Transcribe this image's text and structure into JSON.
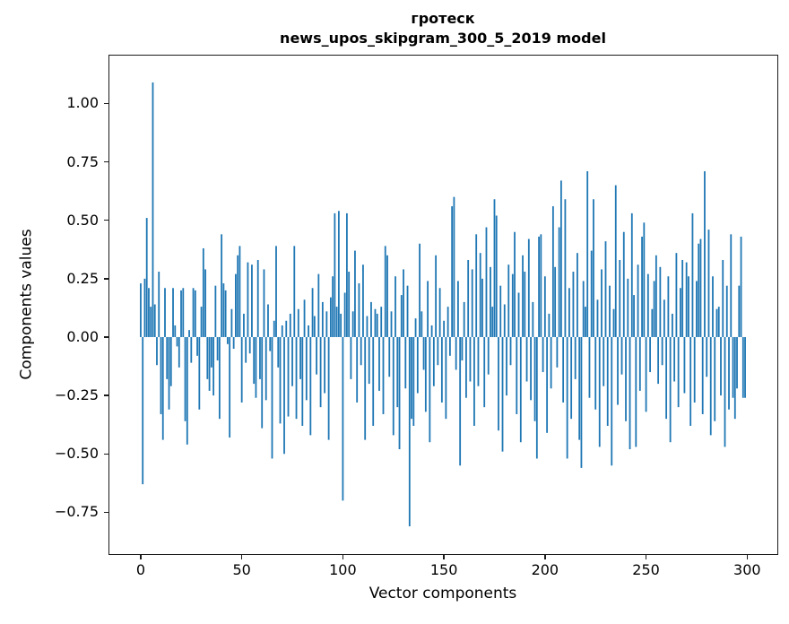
{
  "figure": {
    "title_line1": "гротеск",
    "title_line2": "news_upos_skipgram_300_5_2019 model",
    "xlabel": "Vector components",
    "ylabel": "Components values"
  },
  "chart_data": {
    "type": "bar",
    "title": "гротеск\nnews_upos_skipgram_300_5_2019 model",
    "xlabel": "Vector components",
    "ylabel": "Components values",
    "bar_color": "#1f77b4",
    "grid": false,
    "legend": null,
    "n_components": 300,
    "x_start": 0,
    "bar_width_units": 0.8,
    "xlim": [
      -15.5,
      314.5
    ],
    "ylim": [
      -0.925,
      1.205
    ],
    "x_ticks": [
      0,
      50,
      100,
      150,
      200,
      250,
      300
    ],
    "y_ticks": [
      1.0,
      0.75,
      0.5,
      0.25,
      0.0,
      -0.25,
      -0.5,
      -0.75
    ],
    "y_tick_labels": [
      "1.00",
      "0.75",
      "0.50",
      "0.25",
      "0.00",
      "−0.25",
      "−0.50",
      "−0.75"
    ],
    "values": [
      0.23,
      -0.63,
      0.25,
      0.51,
      0.21,
      0.13,
      1.09,
      0.14,
      -0.12,
      0.28,
      -0.33,
      -0.44,
      0.21,
      -0.18,
      -0.31,
      -0.21,
      0.21,
      0.05,
      -0.04,
      -0.13,
      0.2,
      0.21,
      -0.36,
      -0.46,
      0.03,
      -0.11,
      0.21,
      0.2,
      -0.08,
      -0.31,
      0.13,
      0.38,
      0.29,
      -0.18,
      -0.23,
      -0.13,
      -0.25,
      0.22,
      -0.1,
      -0.35,
      0.44,
      0.23,
      0.2,
      -0.03,
      -0.43,
      0.12,
      -0.05,
      0.27,
      0.35,
      0.39,
      -0.28,
      0.1,
      -0.11,
      0.32,
      -0.07,
      0.31,
      -0.2,
      -0.26,
      0.33,
      -0.18,
      -0.39,
      0.29,
      -0.27,
      0.14,
      -0.06,
      -0.52,
      0.07,
      0.39,
      -0.13,
      -0.37,
      0.05,
      -0.5,
      0.07,
      -0.34,
      0.1,
      -0.21,
      0.39,
      -0.35,
      0.12,
      -0.18,
      -0.38,
      0.16,
      -0.27,
      0.05,
      -0.42,
      0.21,
      0.09,
      -0.16,
      0.27,
      -0.3,
      0.15,
      -0.24,
      0.11,
      -0.44,
      0.17,
      0.26,
      0.53,
      0.13,
      0.54,
      0.1,
      -0.7,
      0.19,
      0.53,
      0.28,
      -0.18,
      0.11,
      0.37,
      -0.28,
      0.23,
      -0.12,
      0.31,
      -0.44,
      0.09,
      -0.2,
      0.15,
      -0.38,
      0.12,
      0.1,
      -0.23,
      0.13,
      -0.33,
      0.39,
      0.35,
      -0.17,
      0.11,
      -0.42,
      0.26,
      -0.3,
      -0.48,
      0.18,
      0.29,
      -0.22,
      0.22,
      -0.81,
      -0.35,
      -0.38,
      0.08,
      -0.24,
      0.4,
      0.11,
      -0.14,
      -0.32,
      0.24,
      -0.45,
      0.05,
      -0.21,
      0.35,
      -0.12,
      0.21,
      -0.28,
      0.07,
      -0.35,
      0.13,
      -0.08,
      0.56,
      0.6,
      -0.14,
      0.24,
      -0.55,
      -0.1,
      0.15,
      -0.26,
      0.33,
      -0.19,
      0.29,
      -0.38,
      0.44,
      -0.21,
      0.36,
      0.25,
      -0.3,
      0.47,
      -0.16,
      0.3,
      0.13,
      0.59,
      0.52,
      -0.4,
      0.22,
      -0.49,
      0.14,
      -0.25,
      0.31,
      -0.12,
      0.27,
      0.45,
      -0.33,
      0.19,
      -0.45,
      0.35,
      0.28,
      -0.19,
      0.42,
      -0.27,
      0.15,
      -0.36,
      -0.52,
      0.43,
      0.44,
      -0.15,
      0.26,
      -0.41,
      0.1,
      -0.22,
      0.56,
      0.3,
      -0.13,
      0.47,
      0.67,
      -0.28,
      0.59,
      -0.52,
      0.21,
      -0.35,
      0.28,
      -0.18,
      0.36,
      -0.44,
      -0.56,
      0.24,
      0.13,
      0.71,
      -0.26,
      0.37,
      0.59,
      -0.31,
      0.16,
      -0.47,
      0.29,
      -0.21,
      0.41,
      -0.38,
      0.22,
      -0.55,
      0.12,
      0.65,
      -0.29,
      0.33,
      -0.16,
      0.45,
      -0.36,
      0.25,
      -0.48,
      0.53,
      0.18,
      -0.47,
      0.31,
      -0.23,
      0.43,
      0.49,
      -0.32,
      0.27,
      -0.15,
      0.12,
      0.24,
      0.35,
      -0.2,
      0.3,
      -0.12,
      0.16,
      -0.35,
      0.26,
      -0.45,
      0.1,
      -0.19,
      0.36,
      -0.3,
      0.21,
      0.33,
      -0.24,
      0.32,
      0.26,
      -0.38,
      0.53,
      -0.28,
      0.24,
      0.4,
      0.42,
      -0.33,
      0.71,
      -0.17,
      0.46,
      -0.42,
      0.26,
      -0.36,
      0.12,
      0.13,
      -0.25,
      0.33,
      -0.47,
      0.22,
      -0.31,
      0.44,
      -0.26,
      -0.35,
      -0.22,
      0.22,
      0.43,
      -0.26,
      -0.26
    ]
  }
}
